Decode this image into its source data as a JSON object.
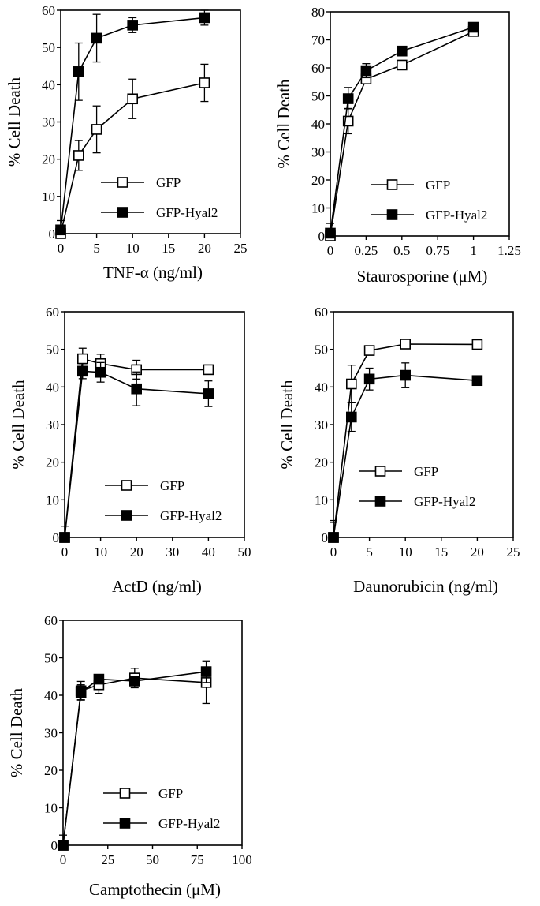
{
  "chart_data": [
    {
      "type": "line",
      "title": "",
      "xlabel": "TNF-α (ng/ml)",
      "ylabel": "% Cell Death",
      "xlim": [
        0,
        25
      ],
      "ylim": [
        0,
        60
      ],
      "xticks": [
        0,
        5,
        10,
        15,
        20,
        25
      ],
      "xtick_labels": [
        "0",
        "5",
        "10",
        "15",
        "20",
        "25"
      ],
      "yticks": [
        0,
        10,
        20,
        30,
        40,
        50,
        60
      ],
      "grid": false,
      "legend": "bottom-right",
      "series": [
        {
          "name": "GFP",
          "marker": "open-square",
          "x": [
            0,
            2.5,
            5,
            10,
            20
          ],
          "y": [
            0,
            21,
            28,
            36.2,
            40.5
          ],
          "err": [
            0,
            4,
            6.3,
            5.3,
            5
          ]
        },
        {
          "name": "GFP-Hyal2",
          "marker": "filled-square",
          "x": [
            0,
            2.5,
            5,
            10,
            20
          ],
          "y": [
            1,
            43.5,
            52.5,
            56,
            58
          ],
          "err": [
            2.5,
            7.7,
            6.4,
            2,
            2
          ]
        }
      ]
    },
    {
      "type": "line",
      "title": "",
      "xlabel": "Staurosporine (μM)",
      "ylabel": "% Cell Death",
      "xlim": [
        0,
        1.25
      ],
      "ylim": [
        0,
        80
      ],
      "xticks": [
        0,
        0.25,
        0.5,
        0.75,
        1,
        1.25
      ],
      "xtick_labels": [
        "0",
        "0.25",
        "0.5",
        "0.75",
        "1",
        "1.25"
      ],
      "yticks": [
        0,
        10,
        20,
        30,
        40,
        50,
        60,
        70,
        80
      ],
      "grid": false,
      "legend": "bottom-right",
      "series": [
        {
          "name": "GFP",
          "marker": "open-square",
          "x": [
            0,
            0.125,
            0.25,
            0.5,
            1
          ],
          "y": [
            0,
            41,
            56,
            61,
            73
          ],
          "err": [
            0,
            4.5,
            0,
            0,
            0
          ]
        },
        {
          "name": "GFP-Hyal2",
          "marker": "filled-square",
          "x": [
            0,
            0.125,
            0.25,
            0.5,
            1
          ],
          "y": [
            1,
            49,
            59,
            66,
            74.5
          ],
          "err": [
            3.5,
            4,
            2.5,
            0,
            0
          ]
        }
      ]
    },
    {
      "type": "line",
      "title": "",
      "xlabel": "ActD (ng/ml)",
      "ylabel": "% Cell Death",
      "xlim": [
        0,
        50
      ],
      "ylim": [
        0,
        60
      ],
      "xticks": [
        0,
        10,
        20,
        30,
        40,
        50
      ],
      "xtick_labels": [
        "0",
        "10",
        "20",
        "30",
        "40",
        "50"
      ],
      "yticks": [
        0,
        10,
        20,
        30,
        40,
        50,
        60
      ],
      "grid": false,
      "legend": "bottom-right",
      "series": [
        {
          "name": "GFP",
          "marker": "open-square",
          "x": [
            0,
            5,
            10,
            20,
            40
          ],
          "y": [
            0,
            47.5,
            46.2,
            44.6,
            44.6
          ],
          "err": [
            0,
            2.8,
            2.5,
            2.5,
            0
          ]
        },
        {
          "name": "GFP-Hyal2",
          "marker": "filled-square",
          "x": [
            0,
            5,
            10,
            20,
            40
          ],
          "y": [
            0,
            44.2,
            43.9,
            39.5,
            38.2
          ],
          "err": [
            3,
            2,
            2.6,
            4.5,
            3.4
          ]
        }
      ]
    },
    {
      "type": "line",
      "title": "",
      "xlabel": "Daunorubicin (ng/ml)",
      "ylabel": "% Cell Death",
      "xlim": [
        0,
        25
      ],
      "ylim": [
        0,
        60
      ],
      "xticks": [
        0,
        5,
        10,
        15,
        20,
        25
      ],
      "xtick_labels": [
        "0",
        "5",
        "10",
        "15",
        "20",
        "25"
      ],
      "yticks": [
        0,
        10,
        20,
        30,
        40,
        50,
        60
      ],
      "grid": false,
      "legend": "bottom-right",
      "series": [
        {
          "name": "GFP",
          "marker": "open-square",
          "x": [
            0,
            2.5,
            5,
            10,
            20
          ],
          "y": [
            0,
            40.8,
            49.7,
            51.4,
            51.3
          ],
          "err": [
            4,
            5,
            0,
            0,
            0
          ]
        },
        {
          "name": "GFP-Hyal2",
          "marker": "filled-square",
          "x": [
            0,
            2.5,
            5,
            10,
            20
          ],
          "y": [
            0,
            32,
            42.1,
            43.1,
            41.7
          ],
          "err": [
            4.5,
            3.8,
            2.9,
            3.3,
            0
          ]
        }
      ]
    },
    {
      "type": "line",
      "title": "",
      "xlabel": "Camptothecin (μM)",
      "ylabel": "% Cell Death",
      "xlim": [
        0,
        100
      ],
      "ylim": [
        0,
        60
      ],
      "xticks": [
        0,
        25,
        50,
        75,
        100
      ],
      "xtick_labels": [
        "0",
        "25",
        "50",
        "75",
        "100"
      ],
      "yticks": [
        0,
        10,
        20,
        30,
        40,
        50,
        60
      ],
      "grid": false,
      "legend": "bottom-right",
      "series": [
        {
          "name": "GFP",
          "marker": "open-square",
          "x": [
            0,
            10,
            20,
            40,
            80
          ],
          "y": [
            0,
            41.2,
            42.8,
            44.6,
            43.4
          ],
          "err": [
            0,
            2.5,
            2.3,
            2.6,
            5.6
          ]
        },
        {
          "name": "GFP-Hyal2",
          "marker": "filled-square",
          "x": [
            0,
            10,
            20,
            40,
            80
          ],
          "y": [
            0,
            40.8,
            44.3,
            43.8,
            46.3
          ],
          "err": [
            2.7,
            2,
            0,
            0,
            2.9
          ]
        }
      ]
    }
  ]
}
